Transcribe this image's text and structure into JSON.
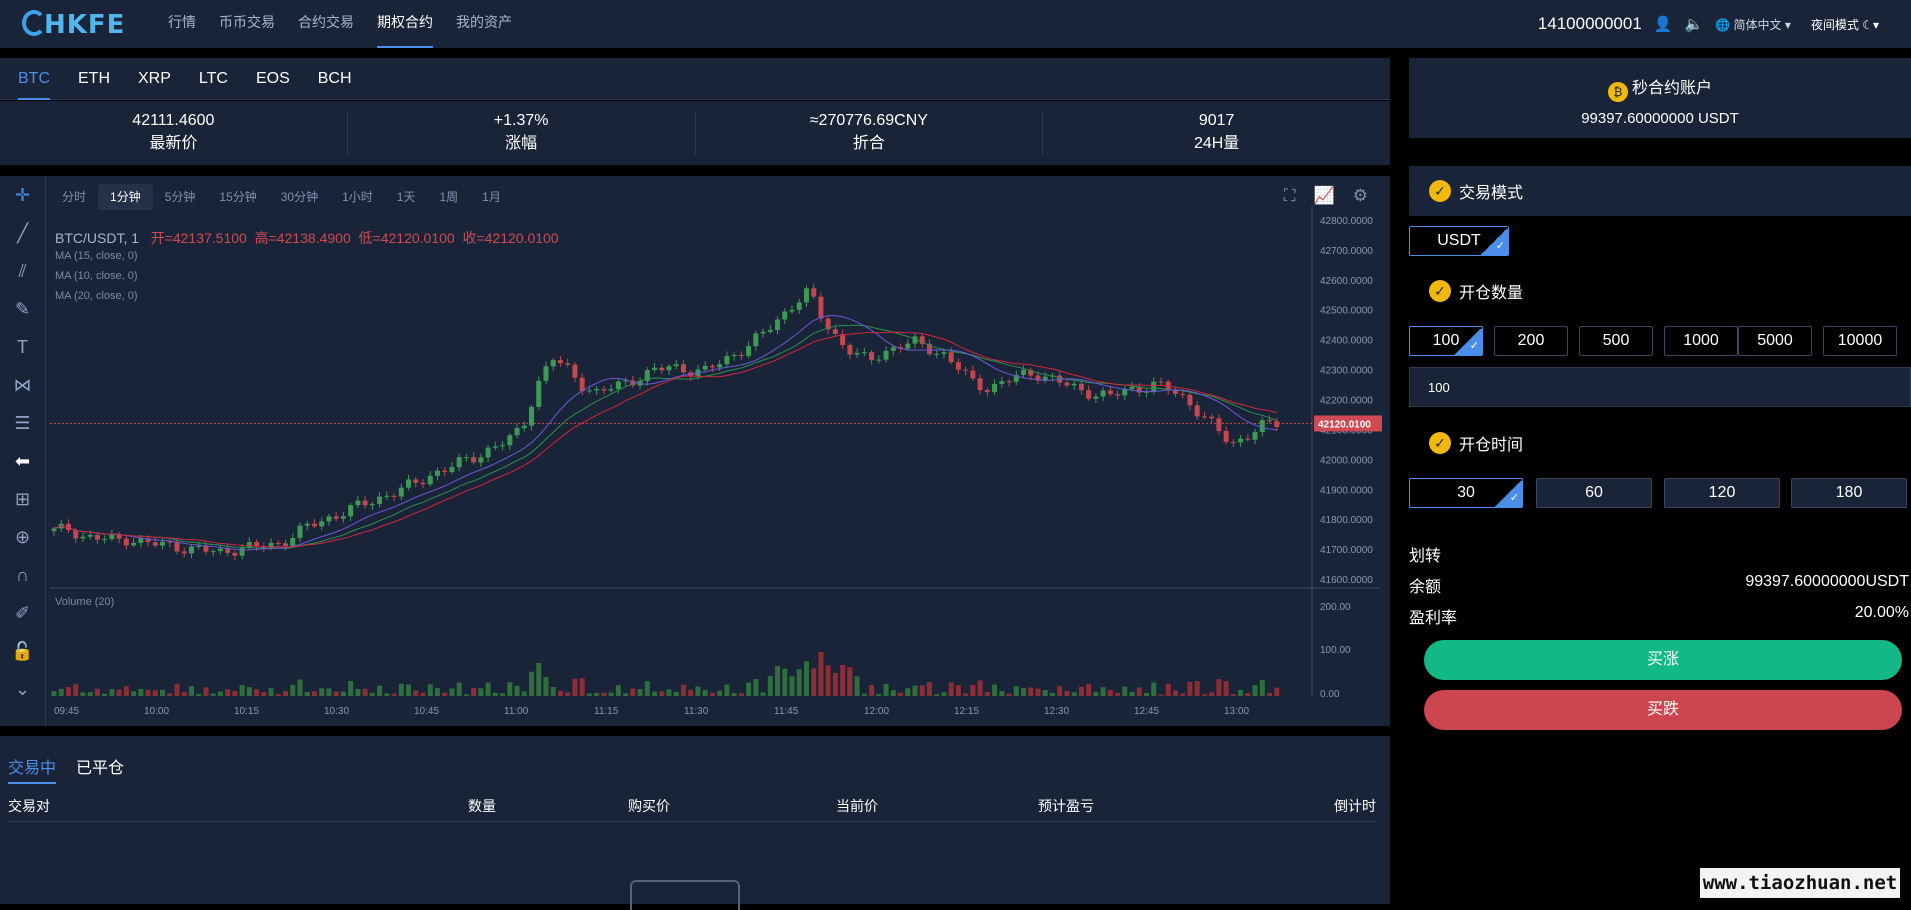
{
  "header": {
    "logo": "HKFE",
    "nav": [
      "行情",
      "币币交易",
      "合约交易",
      "期权合约",
      "我的资产"
    ],
    "active_nav": 3,
    "phone": "14100000001",
    "language": "简体中文",
    "night_mode": "夜间模式"
  },
  "coins": [
    "BTC",
    "ETH",
    "XRP",
    "LTC",
    "EOS",
    "BCH"
  ],
  "active_coin": 0,
  "stats": [
    {
      "value": "42111.4600",
      "label": "最新价"
    },
    {
      "value": "+1.37%",
      "label": "涨幅"
    },
    {
      "value": "≈270776.69CNY",
      "label": "折合"
    },
    {
      "value": "9017",
      "label": "24H量"
    }
  ],
  "intervals": [
    "分时",
    "1分钟",
    "5分钟",
    "15分钟",
    "30分钟",
    "1小时",
    "1天",
    "1周",
    "1月"
  ],
  "active_interval": 1,
  "legend": {
    "symbol": "BTC/USDT, 1",
    "open": "开=42137.5100",
    "high": "高=42138.4900",
    "low": "低=42120.0100",
    "close": "收=42120.0100"
  },
  "ma_labels": [
    "MA (15, close, 0)",
    "MA (10, close, 0)",
    "MA (20, close, 0)"
  ],
  "volume_label": "Volume (20)",
  "price_ticks": [
    "42800.0000",
    "42700.0000",
    "42600.0000",
    "42500.0000",
    "42400.0000",
    "42300.0000",
    "42200.0000",
    "42100.0000",
    "42000.0000",
    "41900.0000",
    "41800.0000",
    "41700.0000",
    "41600.0000"
  ],
  "current_price_tag": "42120.0100",
  "volume_ticks": [
    "200.00",
    "100.00",
    "0.00"
  ],
  "time_ticks": [
    "09:45",
    "10:00",
    "10:15",
    "10:30",
    "10:45",
    "11:00",
    "11:15",
    "11:30",
    "11:45",
    "12:00",
    "12:15",
    "12:30",
    "12:45",
    "13:00"
  ],
  "chart_data": {
    "type": "candlestick",
    "ylim": [
      41570,
      42820
    ],
    "close_path": [
      41760,
      41770,
      41740,
      41735,
      41730,
      41735,
      41720,
      41715,
      41710,
      41700,
      41695,
      41690,
      41700,
      41705,
      41710,
      41720,
      41750,
      41780,
      41800,
      41820,
      41840,
      41860,
      41880,
      41900,
      41920,
      41950,
      41970,
      41990,
      42010,
      42040,
      42060,
      42100,
      42250,
      42340,
      42300,
      42250,
      42220,
      42240,
      42260,
      42280,
      42300,
      42310,
      42300,
      42290,
      42320,
      42350,
      42380,
      42420,
      42470,
      42520,
      42560,
      42460,
      42400,
      42350,
      42330,
      42360,
      42380,
      42390,
      42370,
      42350,
      42300,
      42250,
      42240,
      42260,
      42280,
      42290,
      42270,
      42250,
      42230,
      42220,
      42210,
      42230,
      42240,
      42250,
      42230,
      42200,
      42150,
      42100,
      42050,
      42080,
      42110,
      42120
    ]
  },
  "trades": {
    "tabs": [
      "交易中",
      "已平仓"
    ],
    "active_tab": 0,
    "columns": [
      "交易对",
      "数量",
      "购买价",
      "当前价",
      "预计盈亏",
      "倒计时"
    ]
  },
  "sidebar": {
    "account_title": "秒合约账户",
    "account_balance": "99397.60000000 USDT",
    "trade_mode": "交易模式",
    "mode_option": "USDT",
    "open_qty": "开仓数量",
    "qty_options": [
      "100",
      "200",
      "500",
      "1000",
      "5000",
      "10000"
    ],
    "qty_value": "100",
    "open_time": "开仓时间",
    "time_options": [
      "30",
      "60",
      "120",
      "180"
    ],
    "transfer": "划转",
    "balance_label": "余额",
    "balance_value": "99397.60000000USDT",
    "profit_label": "盈利率",
    "profit_value": "20.00%",
    "buy_up": "买涨",
    "buy_down": "买跌"
  },
  "watermark": "www.tiaozhuan.net"
}
